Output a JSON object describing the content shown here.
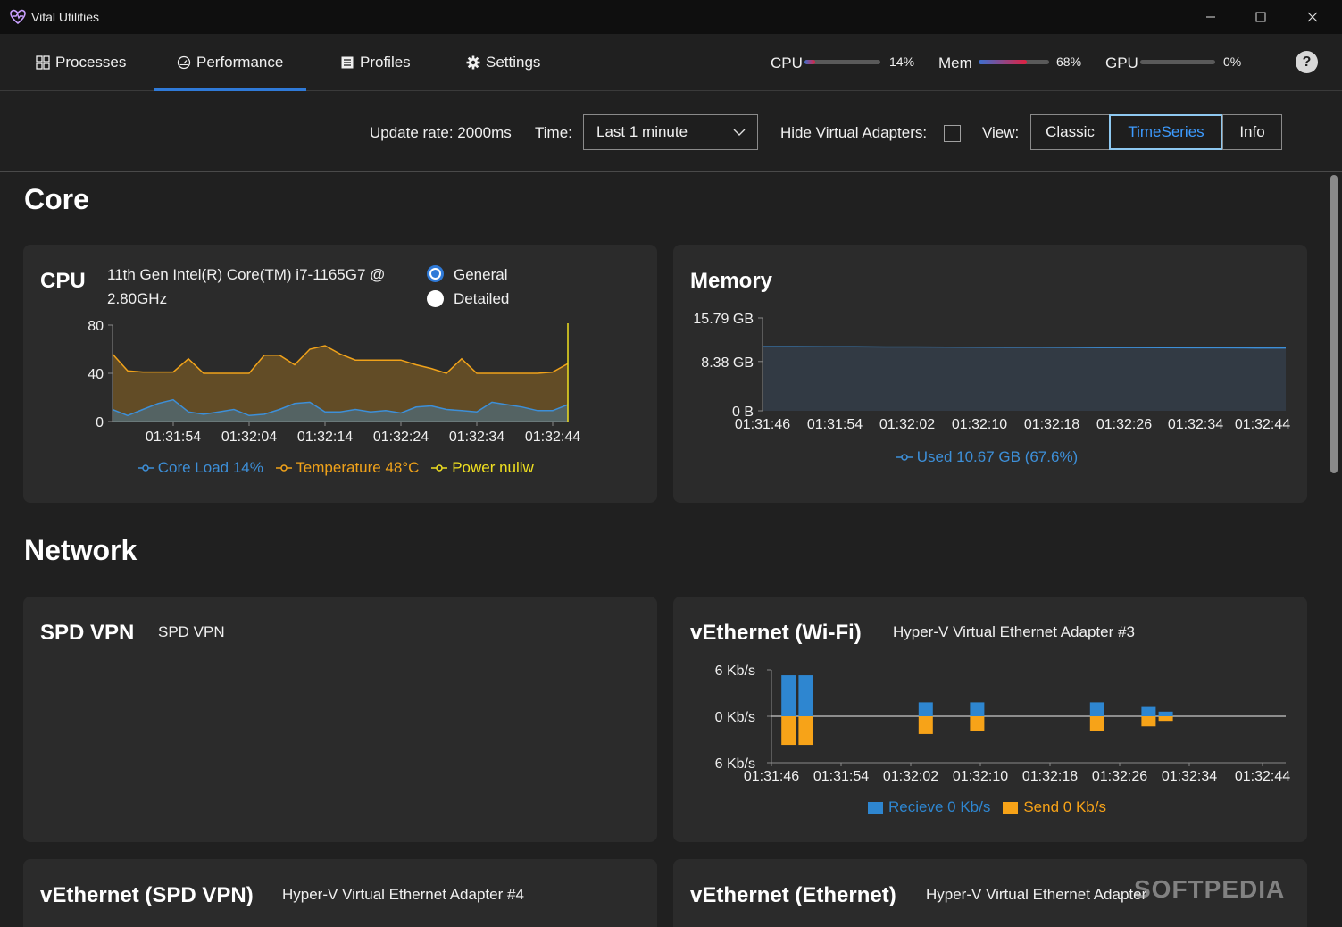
{
  "window": {
    "title": "Vital Utilities"
  },
  "nav": {
    "tabs": [
      {
        "label": "Processes"
      },
      {
        "label": "Performance"
      },
      {
        "label": "Profiles"
      },
      {
        "label": "Settings"
      }
    ],
    "active_tab": "Performance"
  },
  "meters": {
    "cpu": {
      "label": "CPU",
      "value": "14%",
      "fraction": 0.14
    },
    "mem": {
      "label": "Mem",
      "value": "68%",
      "fraction": 0.68
    },
    "gpu": {
      "label": "GPU",
      "value": "0%",
      "fraction": 0.0
    }
  },
  "toolbar": {
    "update_rate": "Update rate: 2000ms",
    "time_label": "Time:",
    "time_value": "Last 1 minute",
    "hide_virtual_label": "Hide Virtual Adapters:",
    "hide_virtual_checked": false,
    "view_label": "View:",
    "view_options": [
      "Classic",
      "TimeSeries",
      "Info"
    ],
    "view_selected": "TimeSeries"
  },
  "sections": {
    "core": "Core",
    "network": "Network"
  },
  "cpu_card": {
    "title": "CPU",
    "model_line1": "11th Gen Intel(R) Core(TM) i7-1165G7 @",
    "model_line2": "2.80GHz",
    "mode_general": "General",
    "mode_detailed": "Detailed",
    "mode_selected": "General",
    "legend": {
      "core_load": "Core Load 14%",
      "temperature": "Temperature 48°C",
      "power": "Power nullw"
    }
  },
  "memory_card": {
    "title": "Memory",
    "legend_used": "Used 10.67 GB (67.6%)"
  },
  "spd_vpn_card": {
    "title": "SPD VPN",
    "subtitle": "SPD VPN"
  },
  "vethernet_wifi_card": {
    "title": "vEthernet (Wi-Fi)",
    "subtitle": "Hyper-V Virtual Ethernet Adapter #3",
    "legend_receive": "Recieve 0 Kb/s",
    "legend_send": "Send 0 Kb/s"
  },
  "vethernet_spdvpn_card": {
    "title": "vEthernet (SPD VPN)",
    "subtitle": "Hyper-V Virtual Ethernet Adapter #4"
  },
  "vethernet_ethernet_card": {
    "title": "vEthernet (Ethernet)",
    "subtitle": "Hyper-V Virtual Ethernet Adapter"
  },
  "watermark": "SOFTPEDIA",
  "colors": {
    "accent": "#2f7ad8",
    "core_load": "#3d8fd8",
    "temperature": "#f0a21a",
    "power": "#f0e020",
    "receive": "#2e86d0",
    "send": "#f7a318"
  },
  "chart_data": [
    {
      "type": "area",
      "chart": "cpu",
      "x": [
        "01:31:46",
        "01:31:48",
        "01:31:50",
        "01:31:52",
        "01:31:54",
        "01:31:56",
        "01:31:58",
        "01:32:00",
        "01:32:02",
        "01:32:04",
        "01:32:06",
        "01:32:08",
        "01:32:10",
        "01:32:12",
        "01:32:14",
        "01:32:16",
        "01:32:18",
        "01:32:20",
        "01:32:22",
        "01:32:24",
        "01:32:26",
        "01:32:28",
        "01:32:30",
        "01:32:32",
        "01:32:34",
        "01:32:36",
        "01:32:38",
        "01:32:40",
        "01:32:42",
        "01:32:44",
        "01:32:46"
      ],
      "xticks": [
        "01:31:54",
        "01:32:04",
        "01:32:14",
        "01:32:24",
        "01:32:34",
        "01:32:44"
      ],
      "yticks": [
        0,
        40,
        80
      ],
      "ylim": [
        0,
        80
      ],
      "series": [
        {
          "name": "Temperature 48°C",
          "values": [
            56,
            42,
            41,
            41,
            41,
            52,
            40,
            40,
            40,
            40,
            55,
            55,
            47,
            60,
            63,
            56,
            51,
            51,
            51,
            51,
            47,
            44,
            40,
            52,
            40,
            40,
            40,
            40,
            40,
            41,
            48
          ]
        },
        {
          "name": "Core Load 14%",
          "values": [
            10,
            5,
            10,
            15,
            18,
            8,
            6,
            8,
            10,
            5,
            6,
            10,
            15,
            16,
            8,
            8,
            10,
            8,
            9,
            7,
            12,
            13,
            10,
            9,
            8,
            16,
            14,
            12,
            9,
            9,
            14
          ]
        }
      ]
    },
    {
      "type": "area",
      "chart": "memory",
      "xticks": [
        "01:31:46",
        "01:31:54",
        "01:32:02",
        "01:32:10",
        "01:32:18",
        "01:32:26",
        "01:32:34",
        "01:32:44"
      ],
      "yticks": [
        "0 B",
        "8.38 GB",
        "15.79 GB"
      ],
      "ylim": [
        0,
        15.79
      ],
      "series": [
        {
          "name": "Used 10.67 GB (67.6%)",
          "values": [
            10.9,
            10.9,
            10.88,
            10.88,
            10.85,
            10.85,
            10.84,
            10.82,
            10.8,
            10.8,
            10.78,
            10.75,
            10.75,
            10.72,
            10.7,
            10.7,
            10.68,
            10.67
          ]
        }
      ]
    },
    {
      "type": "bar",
      "chart": "vethernet-wifi",
      "xticks": [
        "01:31:46",
        "01:31:54",
        "01:32:02",
        "01:32:10",
        "01:32:18",
        "01:32:26",
        "01:32:34",
        "01:32:44"
      ],
      "yticks": [
        "6 Kb/s",
        "0 Kb/s",
        "6 Kb/s"
      ],
      "ylim": [
        -6,
        6
      ],
      "categories": [
        "01:31:48",
        "01:31:50",
        "01:32:04",
        "01:32:10",
        "01:32:24",
        "01:32:30",
        "01:32:32"
      ],
      "series": [
        {
          "name": "Recieve 0 Kb/s",
          "values": [
            5.3,
            5.3,
            1.8,
            1.8,
            1.8,
            1.2,
            0.6
          ]
        },
        {
          "name": "Send 0 Kb/s",
          "values": [
            -3.7,
            -3.7,
            -2.3,
            -1.9,
            -1.9,
            -1.3,
            -0.6
          ]
        }
      ]
    }
  ]
}
